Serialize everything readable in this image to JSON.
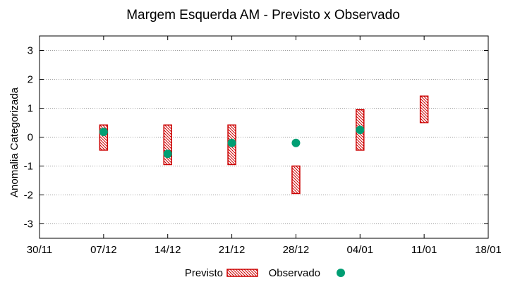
{
  "chart_data": {
    "type": "range-bars-with-points",
    "title": "Margem Esquerda AM - Previsto x Observado",
    "xlabel": "",
    "ylabel": "Anomalia Categorizada",
    "x_ticks": [
      "30/11",
      "07/12",
      "14/12",
      "21/12",
      "28/12",
      "04/01",
      "11/01",
      "18/01"
    ],
    "y_ticks": [
      "-3",
      "-2",
      "-1",
      "0",
      "1",
      "2",
      "3"
    ],
    "ylim": [
      -3.5,
      3.5
    ],
    "grid": true,
    "legend": {
      "position": "bottom-center",
      "items": [
        "Previsto",
        "Observado"
      ]
    },
    "series": [
      {
        "name": "Previsto",
        "kind": "hatched-range",
        "color": "#cc0000",
        "points": [
          {
            "date": "07/12",
            "low": -0.45,
            "high": 0.42
          },
          {
            "date": "14/12",
            "low": -0.95,
            "high": 0.42
          },
          {
            "date": "21/12",
            "low": -0.95,
            "high": 0.42
          },
          {
            "date": "28/12",
            "low": -1.95,
            "high": -1.0
          },
          {
            "date": "04/01",
            "low": -0.45,
            "high": 0.95
          },
          {
            "date": "11/01",
            "low": 0.5,
            "high": 1.42
          }
        ]
      },
      {
        "name": "Observado",
        "kind": "point",
        "color": "#009e73",
        "points": [
          {
            "date": "07/12",
            "value": 0.18
          },
          {
            "date": "14/12",
            "value": -0.58
          },
          {
            "date": "21/12",
            "value": -0.2
          },
          {
            "date": "28/12",
            "value": -0.2
          },
          {
            "date": "04/01",
            "value": 0.25
          }
        ]
      }
    ]
  }
}
